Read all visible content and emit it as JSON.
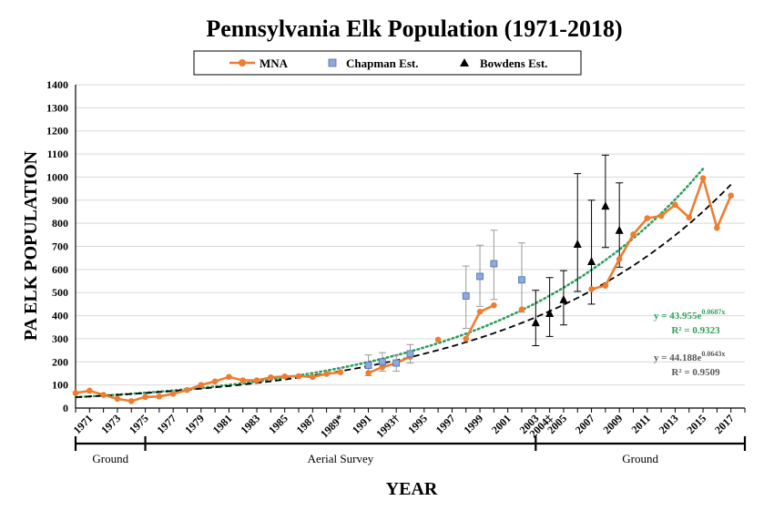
{
  "chart_data": {
    "type": "line",
    "title": "Pennsylvania Elk Population (1971-2018)",
    "xlabel": "YEAR",
    "ylabel": "PA ELK POPULATION",
    "ylim": [
      0,
      1400
    ],
    "xlim": [
      1970,
      2018
    ],
    "yticks": [
      0,
      100,
      200,
      300,
      400,
      500,
      600,
      700,
      800,
      900,
      1000,
      1100,
      1200,
      1300,
      1400
    ],
    "xtick_labels": [
      {
        "x": 1971,
        "label": "1971"
      },
      {
        "x": 1973,
        "label": "1973"
      },
      {
        "x": 1975,
        "label": "1975"
      },
      {
        "x": 1977,
        "label": "1977"
      },
      {
        "x": 1979,
        "label": "1979"
      },
      {
        "x": 1981,
        "label": "1981"
      },
      {
        "x": 1983,
        "label": "1983"
      },
      {
        "x": 1985,
        "label": "1985"
      },
      {
        "x": 1987,
        "label": "1987"
      },
      {
        "x": 1989,
        "label": "1989*"
      },
      {
        "x": 1991,
        "label": "1991"
      },
      {
        "x": 1993,
        "label": "1993†"
      },
      {
        "x": 1995,
        "label": "1995"
      },
      {
        "x": 1997,
        "label": "1997"
      },
      {
        "x": 1999,
        "label": "1999"
      },
      {
        "x": 2001,
        "label": "2001"
      },
      {
        "x": 2003,
        "label": "2003"
      },
      {
        "x": 2004,
        "label": "2004‡"
      },
      {
        "x": 2005,
        "label": "2005"
      },
      {
        "x": 2007,
        "label": "2007"
      },
      {
        "x": 2009,
        "label": "2009"
      },
      {
        "x": 2011,
        "label": "2011"
      },
      {
        "x": 2013,
        "label": "2013"
      },
      {
        "x": 2015,
        "label": "2015"
      },
      {
        "x": 2017,
        "label": "2017"
      }
    ],
    "legend": {
      "placement": "top",
      "entries": [
        "MNA",
        "Chapman Est.",
        "Bowdens Est."
      ]
    },
    "grid": "horizontal",
    "series": [
      {
        "name": "MNA",
        "color": "#ED7D31",
        "marker": "circle",
        "segments": [
          [
            [
              1970,
              65
            ],
            [
              1971,
              75
            ],
            [
              1972,
              57
            ],
            [
              1973,
              40
            ],
            [
              1974,
              30
            ],
            [
              1975,
              48
            ],
            [
              1976,
              50
            ],
            [
              1977,
              62
            ],
            [
              1978,
              78
            ],
            [
              1979,
              100
            ],
            [
              1980,
              115
            ],
            [
              1981,
              135
            ],
            [
              1982,
              120
            ],
            [
              1983,
              120
            ],
            [
              1984,
              133
            ],
            [
              1985,
              137
            ],
            [
              1986,
              138
            ],
            [
              1987,
              135
            ],
            [
              1988,
              148
            ],
            [
              1989,
              155
            ]
          ],
          [
            [
              1991,
              152
            ],
            [
              1992,
              177
            ],
            [
              1993,
              195
            ],
            [
              1994,
              222
            ]
          ],
          [
            [
              1996,
              296
            ]
          ],
          [
            [
              1998,
              300
            ],
            [
              1999,
              417
            ],
            [
              2000,
              445
            ]
          ],
          [
            [
              2002,
              427
            ]
          ],
          [
            [
              2007,
              515
            ],
            [
              2008,
              530
            ],
            [
              2009,
              645
            ],
            [
              2010,
              752
            ],
            [
              2011,
              822
            ],
            [
              2012,
              832
            ],
            [
              2013,
              880
            ],
            [
              2014,
              825
            ],
            [
              2015,
              995
            ],
            [
              2016,
              780
            ],
            [
              2017,
              920
            ]
          ]
        ]
      },
      {
        "name": "Chapman Est.",
        "color": "#8EA9DB",
        "marker": "square",
        "points": [
          {
            "x": 1991,
            "y": 185,
            "lo": 140,
            "hi": 230
          },
          {
            "x": 1992,
            "y": 200,
            "lo": 160,
            "hi": 240
          },
          {
            "x": 1993,
            "y": 195,
            "lo": 160,
            "hi": 230
          },
          {
            "x": 1994,
            "y": 235,
            "lo": 195,
            "hi": 275
          },
          {
            "x": 1998,
            "y": 485,
            "lo": 345,
            "hi": 615
          },
          {
            "x": 1999,
            "y": 570,
            "lo": 440,
            "hi": 705
          },
          {
            "x": 2000,
            "y": 625,
            "lo": 470,
            "hi": 770
          },
          {
            "x": 2002,
            "y": 555,
            "lo": 415,
            "hi": 715
          }
        ]
      },
      {
        "name": "Bowdens Est.",
        "color": "#000000",
        "marker": "triangle",
        "points": [
          {
            "x": 2003,
            "y": 370,
            "lo": 270,
            "hi": 510
          },
          {
            "x": 2004,
            "y": 410,
            "lo": 310,
            "hi": 565
          },
          {
            "x": 2005,
            "y": 470,
            "lo": 360,
            "hi": 595
          },
          {
            "x": 2006,
            "y": 710,
            "lo": 505,
            "hi": 1015
          },
          {
            "x": 2007,
            "y": 635,
            "lo": 450,
            "hi": 900
          },
          {
            "x": 2008,
            "y": 875,
            "lo": 695,
            "hi": 1095
          },
          {
            "x": 2009,
            "y": 770,
            "lo": 610,
            "hi": 975
          }
        ]
      }
    ],
    "trendlines": [
      {
        "type": "exponential",
        "a": 43.955,
        "b": 0.0687,
        "color": "#2E9E5B",
        "style": "dotted",
        "x_start": 1970,
        "x_end": 2015,
        "equation": "y = 43.955e",
        "exponent": "0.0687x",
        "r2": "R² = 0.9323"
      },
      {
        "type": "exponential",
        "a": 44.188,
        "b": 0.0643,
        "color": "#000000",
        "style": "dashed",
        "x_start": 1970,
        "x_end": 2017,
        "equation": "y = 44.188e",
        "exponent": "0.0643x",
        "r2": "R² = 0.9509"
      }
    ],
    "survey_periods": [
      {
        "label": "Ground",
        "from": 1970,
        "to": 1975
      },
      {
        "label": "Aerial  Survey",
        "from": 1975,
        "to": 2003
      },
      {
        "label": "Ground",
        "from": 2003,
        "to": 2018
      }
    ]
  }
}
